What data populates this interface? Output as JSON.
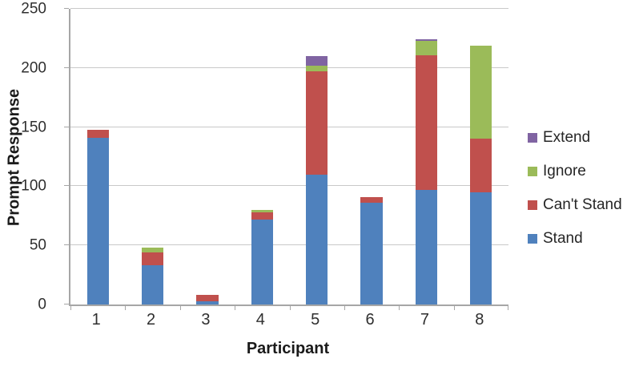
{
  "chart_data": {
    "type": "bar",
    "stacked": true,
    "title": "",
    "xlabel": "Participant",
    "ylabel": "Prompt Response",
    "categories": [
      "1",
      "2",
      "3",
      "4",
      "5",
      "6",
      "7",
      "8"
    ],
    "series": [
      {
        "name": "Stand",
        "color": "#4F81BD",
        "values": [
          141,
          33,
          3,
          72,
          110,
          86,
          97,
          95
        ]
      },
      {
        "name": "Can't Stand",
        "color": "#C0504D",
        "values": [
          7,
          11,
          5,
          6,
          87,
          5,
          114,
          45
        ]
      },
      {
        "name": "Ignore",
        "color": "#9BBB59",
        "values": [
          0,
          4,
          0,
          2,
          5,
          0,
          12,
          79
        ]
      },
      {
        "name": "Extend",
        "color": "#8064A2",
        "values": [
          0,
          0,
          0,
          0,
          8,
          0,
          1,
          0
        ]
      }
    ],
    "ylim": [
      0,
      250
    ],
    "ytick_step": 50,
    "ytick_labels": [
      "0",
      "50",
      "100",
      "150",
      "200",
      "250"
    ],
    "grid": true,
    "legend_position": "right",
    "legend_order": [
      "Extend",
      "Ignore",
      "Can't Stand",
      "Stand"
    ],
    "axis_color": "#a6a6a6",
    "gridline_color": "#c9c9c9"
  }
}
